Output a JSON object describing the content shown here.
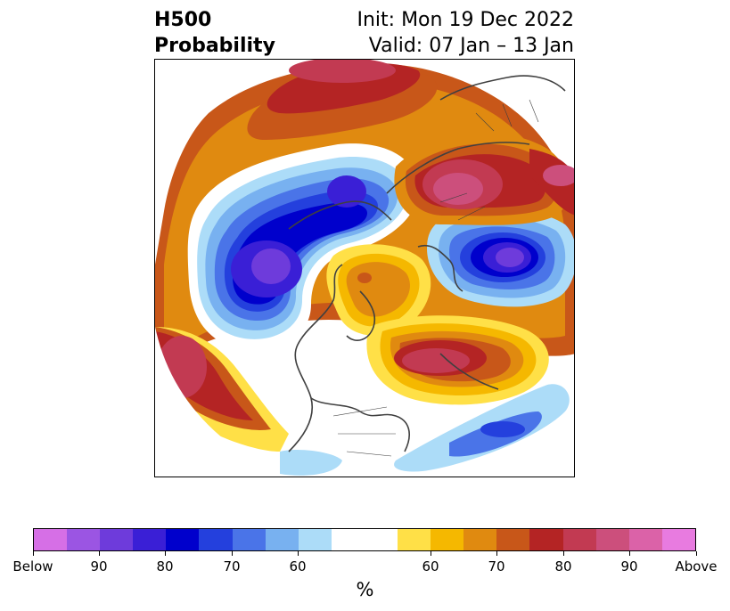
{
  "title": {
    "left_line1": "H500",
    "left_line2": "Probability",
    "right_line1": "Init: Mon 19 Dec 2022",
    "right_line2": "Valid: 07 Jan – 13 Jan"
  },
  "map": {
    "projection": "north-polar-stereographic",
    "variable": "500 hPa height anomaly probability"
  },
  "colorbar": {
    "colors": [
      "#d66fe6",
      "#9b55e3",
      "#6e3bdb",
      "#3a1fd6",
      "#0000cc",
      "#2440dd",
      "#4a74e8",
      "#78b1f0",
      "#acdcf8",
      "#ffffff",
      "#ffffff",
      "#ffe047",
      "#f5b800",
      "#e08a10",
      "#c85719",
      "#b42424",
      "#c23a52",
      "#cc4f7c",
      "#db62a8",
      "#e87be0"
    ],
    "ticks": [
      "Below",
      "90",
      "80",
      "70",
      "60",
      "60",
      "70",
      "80",
      "90",
      "Above"
    ],
    "label": "%"
  }
}
